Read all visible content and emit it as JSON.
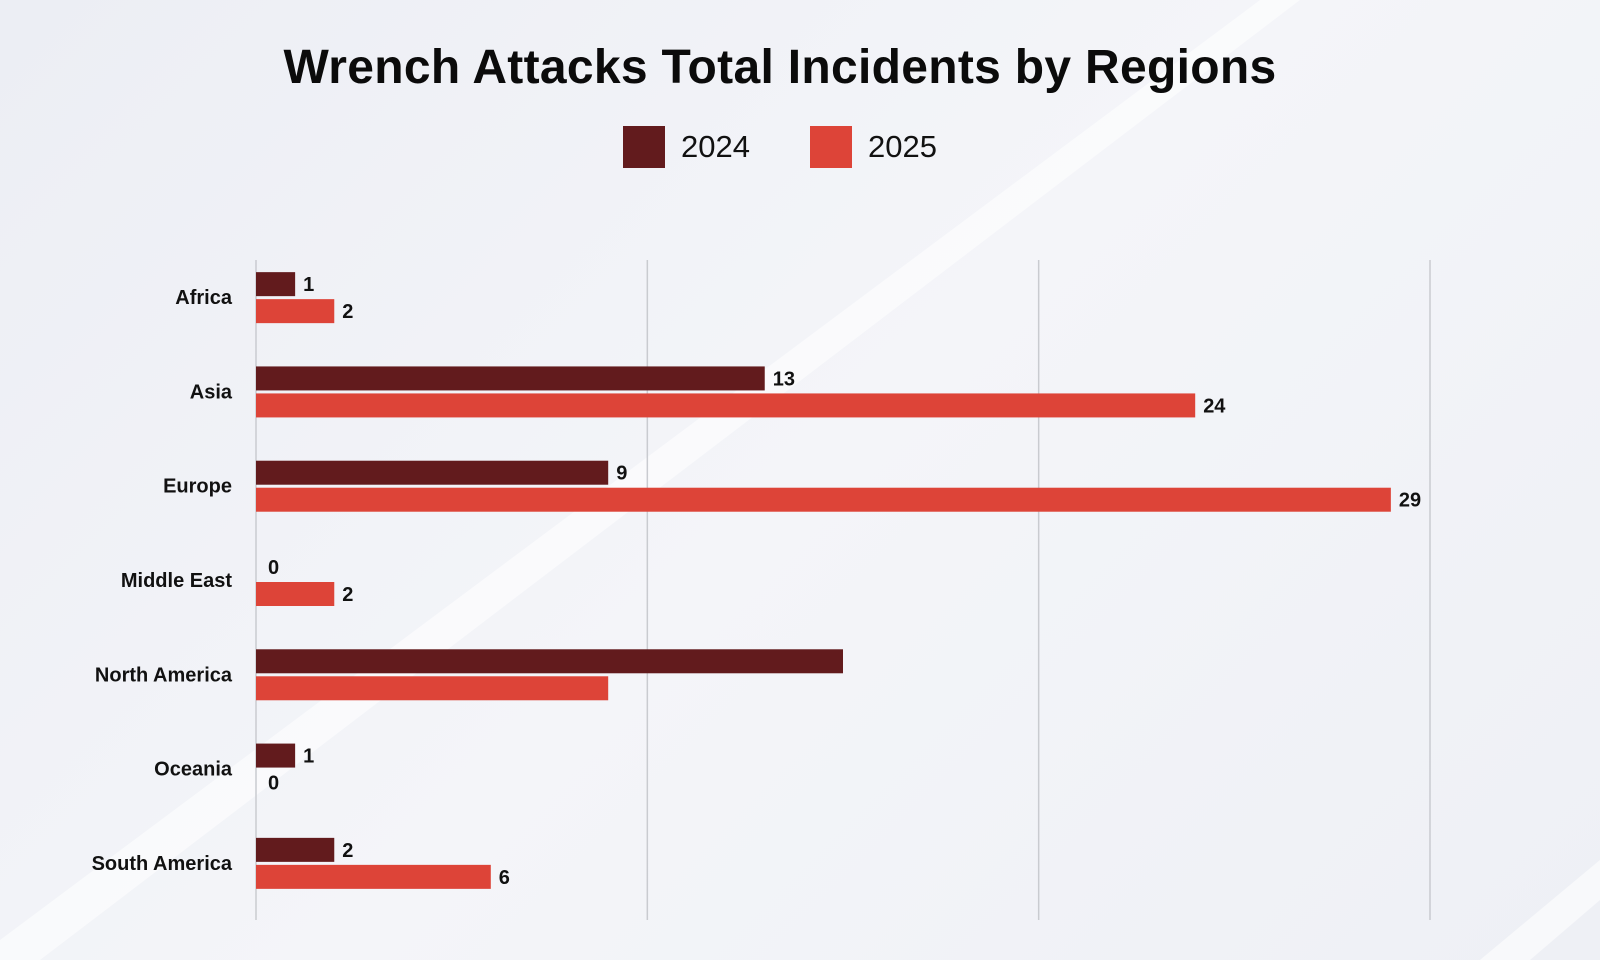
{
  "chart_data": {
    "type": "bar",
    "orientation": "horizontal",
    "title": "Wrench Attacks Total Incidents by Regions",
    "categories": [
      "Africa",
      "Asia",
      "Europe",
      "Middle East",
      "North America",
      "Oceania",
      "South America"
    ],
    "series": [
      {
        "name": "2024",
        "color": "#621b1d",
        "values": [
          1,
          13,
          9,
          0,
          15,
          1,
          2
        ],
        "labels": [
          "1",
          "13",
          "9",
          "0",
          "",
          "1",
          "2"
        ]
      },
      {
        "name": "2025",
        "color": "#dd4438",
        "values": [
          2,
          24,
          29,
          2,
          9,
          0,
          6
        ],
        "labels": [
          "2",
          "24",
          "29",
          "2",
          "",
          "0",
          "6"
        ]
      }
    ],
    "xlim": [
      0,
      30
    ],
    "grid": true,
    "legend_placement": "top-center"
  }
}
